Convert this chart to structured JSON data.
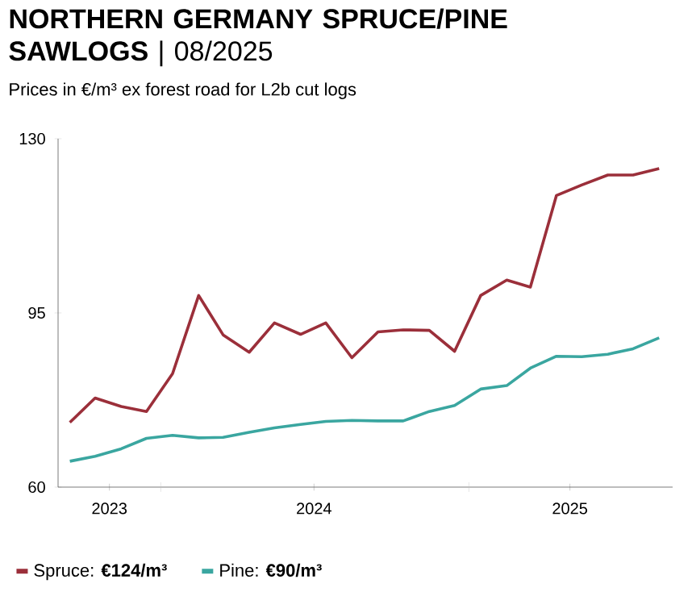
{
  "chart_data": {
    "type": "line",
    "title": "**NORTHERN GERMANY SPRUCE/PINE SAWLOGS** | 08/2025",
    "subtitle": "Prices in €/m³ ex forest road for L2b cut logs",
    "x": [
      "2023-09-15",
      "2023-10-15",
      "2023-11-15",
      "2023-12-15",
      "2024-01-15",
      "2024-02-15",
      "2024-03-15",
      "2024-04-15",
      "2024-05-15",
      "2024-06-15",
      "2024-07-15",
      "2024-08-15",
      "2024-09-15",
      "2024-10-15",
      "2024-11-15",
      "2024-12-15",
      "2025-01-15",
      "2025-02-15",
      "2025-03-15",
      "2025-04-15",
      "2025-05-15",
      "2025-06-15",
      "2025-07-15",
      "2025-08-15"
    ],
    "series": [
      {
        "name": "Spruce: **€124/m³**",
        "color": "#9b2f3a",
        "values": [
          73.0,
          77.9,
          76.2,
          75.2,
          82.8,
          98.5,
          90.6,
          87.1,
          93.0,
          90.7,
          93.0,
          86.0,
          91.2,
          91.6,
          91.5,
          87.3,
          98.5,
          101.6,
          100.2,
          118.6,
          120.7,
          122.7,
          122.7,
          124
        ]
      },
      {
        "name": "Pine: **€90/m³**",
        "color": "#3aa6a0",
        "values": [
          65.2,
          66.2,
          67.7,
          69.8,
          70.4,
          69.9,
          70.0,
          71.0,
          71.9,
          72.6,
          73.2,
          73.4,
          73.3,
          73.3,
          75.2,
          76.4,
          79.7,
          80.4,
          83.9,
          86.3,
          86.2,
          86.7,
          87.8,
          90
        ]
      }
    ],
    "xlim": [
      "2023-09-01",
      "2025-08-31"
    ],
    "xticks": [
      {
        "value": "2023-11-01",
        "label": "2023"
      },
      {
        "value": "2024-01-01",
        "label": null
      },
      {
        "value": "2024-07-01",
        "label": "2024"
      },
      {
        "value": "2025-01-01",
        "label": null
      },
      {
        "value": "2025-05-01",
        "label": "2025"
      }
    ],
    "ylim": [
      60,
      130
    ],
    "yticks": [
      60,
      95,
      130
    ],
    "grid": false,
    "legend": "bottom",
    "marker": "none",
    "line_style": "solid"
  }
}
